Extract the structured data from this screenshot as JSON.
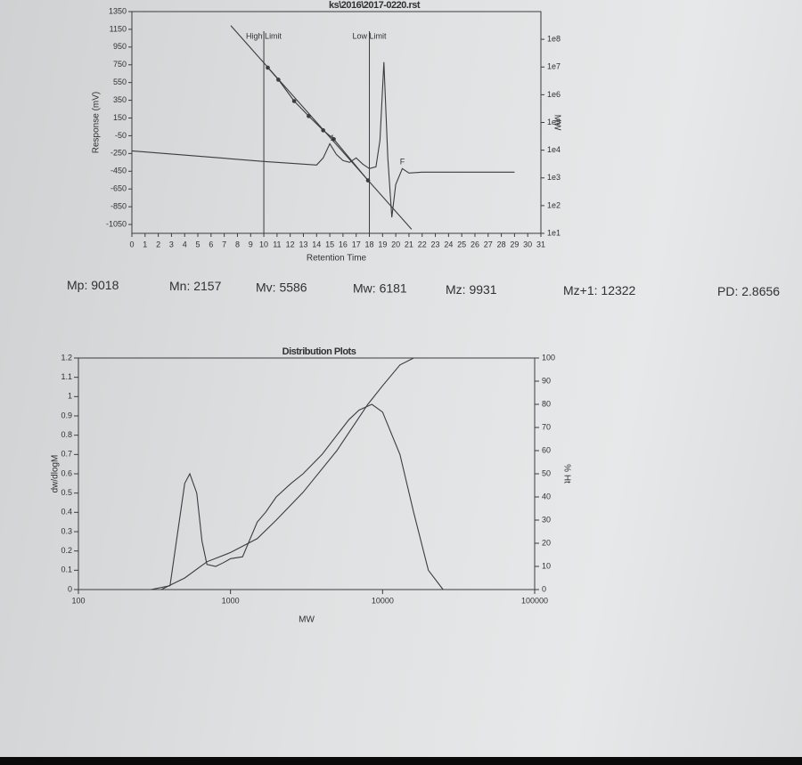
{
  "chart_data": [
    {
      "type": "line",
      "title": "ks\\2016\\2017-0220.rst",
      "xlabel": "Retention Time",
      "ylabel": "Response (mV)",
      "y2label": "MW",
      "xlim": [
        0,
        31
      ],
      "xticks": [
        0,
        1,
        2,
        3,
        4,
        5,
        6,
        7,
        8,
        9,
        10,
        11,
        12,
        13,
        14,
        15,
        16,
        17,
        18,
        19,
        20,
        21,
        22,
        23,
        24,
        25,
        26,
        27,
        28,
        29,
        30,
        31
      ],
      "ylim": [
        -1150,
        1350
      ],
      "yticks": [
        1350,
        1150,
        950,
        750,
        550,
        350,
        150,
        -50,
        -250,
        -450,
        -650,
        -850,
        -1050
      ],
      "y2lim": [
        10,
        1000000000
      ],
      "y2scale": "log",
      "y2ticks": [
        {
          "value": 100000000,
          "label": "1e8"
        },
        {
          "value": 10000000,
          "label": "1e7"
        },
        {
          "value": 1000000,
          "label": "1e6"
        },
        {
          "value": 100000,
          "label": "1e5"
        },
        {
          "value": 10000,
          "label": "1e4"
        },
        {
          "value": 1000,
          "label": "1e3"
        },
        {
          "value": 100,
          "label": "1e2"
        },
        {
          "value": 10,
          "label": "1e1"
        }
      ],
      "limits": [
        {
          "label": "High Limit",
          "x": 10
        },
        {
          "label": "Low Limit",
          "x": 18
        }
      ],
      "annotations": [
        "1",
        "F"
      ],
      "color": "#3a3c3e",
      "series": [
        {
          "x": [
            0,
            5,
            10,
            14,
            14.5,
            15,
            15.5,
            16,
            16.5,
            17,
            17.5,
            18,
            18.5,
            18.8,
            19.1,
            19.4,
            19.7,
            20,
            20.5,
            21,
            22,
            29
          ],
          "values": [
            -220,
            -280,
            -340,
            -380,
            -300,
            -140,
            -260,
            -330,
            -350,
            -300,
            -370,
            -420,
            -400,
            -100,
            780,
            -300,
            -970,
            -600,
            -420,
            -470,
            -460,
            -460
          ]
        },
        {
          "x": [
            10.3,
            11.1,
            12.3,
            13.4,
            14.5,
            15.3,
            17.9
          ],
          "values": [
            9500000,
            3500000,
            590000,
            170000,
            52000,
            25000,
            810
          ],
          "axis": "y2",
          "markers": true
        },
        {
          "x": [
            7.5,
            21.2
          ],
          "values": [
            310000000,
            14
          ],
          "axis": "y2"
        }
      ]
    },
    {
      "type": "line",
      "title": "Distribution Plots",
      "xlabel": "MW",
      "ylabel": "dw/dlogM",
      "y2label": "% Ht",
      "xscale": "log",
      "xlim": [
        100,
        100000
      ],
      "xticks": [
        100,
        1000,
        10000,
        100000
      ],
      "ylim": [
        0,
        1.2
      ],
      "yticks": [
        0,
        0.1,
        0.2,
        0.3,
        0.4,
        0.5,
        0.6,
        0.7,
        0.8,
        0.9,
        1,
        1.1,
        1.2
      ],
      "y2lim": [
        0,
        100
      ],
      "y2ticks": [
        0,
        10,
        20,
        30,
        40,
        50,
        60,
        70,
        80,
        90,
        100
      ],
      "color": "#3a3c3e",
      "series": [
        {
          "x": [
            300,
            400,
            450,
            500,
            540,
            600,
            650,
            700,
            800,
            900,
            1000,
            1200,
            1500,
            1700,
            2000,
            2500,
            3000,
            4000,
            5000,
            6000,
            7000,
            8500,
            10000,
            13000,
            16000,
            20000,
            25000
          ],
          "values": [
            0,
            0.02,
            0.3,
            0.55,
            0.6,
            0.5,
            0.25,
            0.13,
            0.12,
            0.14,
            0.16,
            0.17,
            0.35,
            0.4,
            0.48,
            0.55,
            0.6,
            0.7,
            0.8,
            0.88,
            0.93,
            0.96,
            0.92,
            0.7,
            0.4,
            0.1,
            0
          ]
        },
        {
          "x": [
            350,
            500,
            700,
            1000,
            1500,
            2000,
            3000,
            5000,
            8000,
            10000,
            13000,
            16000
          ],
          "values": [
            0,
            5,
            12,
            16,
            22,
            30,
            42,
            60,
            80,
            88,
            97,
            100
          ],
          "axis": "y2"
        }
      ]
    }
  ],
  "stats": [
    {
      "label": "Mp:",
      "value": 9018
    },
    {
      "label": "Mn:",
      "value": 2157
    },
    {
      "label": "Mv:",
      "value": 5586
    },
    {
      "label": "Mw:",
      "value": 6181
    },
    {
      "label": "Mz:",
      "value": 9931
    },
    {
      "label": "Mz+1:",
      "value": 12322
    },
    {
      "label": "PD:",
      "value": 2.8656
    }
  ]
}
